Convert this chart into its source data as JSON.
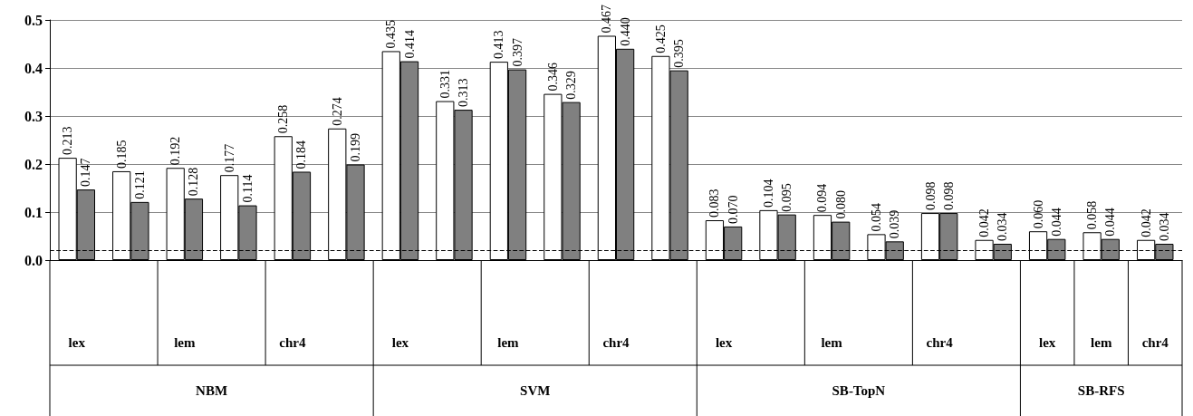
{
  "chart_data": {
    "type": "bar",
    "categories": [
      "lex",
      null,
      "lem",
      null,
      "chr4",
      null,
      "lex",
      null,
      "lem",
      null,
      "chr4",
      null,
      "lex",
      null,
      "lem",
      null,
      "chr4",
      null,
      "lex",
      "lem",
      "chr4"
    ],
    "series": [
      {
        "color": "#ffffff",
        "values": [
          0.213,
          0.185,
          0.192,
          0.177,
          0.258,
          0.274,
          0.435,
          0.331,
          0.413,
          0.346,
          0.467,
          0.425,
          0.083,
          0.104,
          0.094,
          0.054,
          0.098,
          0.042,
          0.06,
          0.058,
          0.042
        ],
        "value_labels": [
          "0.213",
          "0.185",
          "0.192",
          "0.177",
          "0.258",
          "0.274",
          "0.435",
          "0.331",
          "0.413",
          "0.346",
          "0.467",
          "0.425",
          "0.083",
          "0.104",
          "0.094",
          "0.054",
          "0.098",
          "0.042",
          "0.060",
          "0.058",
          "0.042"
        ]
      },
      {
        "color": "#808080",
        "values": [
          0.147,
          0.121,
          0.128,
          0.114,
          0.184,
          0.199,
          0.414,
          0.313,
          0.397,
          0.329,
          0.44,
          0.395,
          0.07,
          0.095,
          0.08,
          0.039,
          0.098,
          0.034,
          0.044,
          0.044,
          0.034
        ],
        "value_labels": [
          "0.147",
          "0.121",
          "0.128",
          "0.114",
          "0.184",
          "0.199",
          "0.414",
          "0.313",
          "0.397",
          "0.329",
          "0.440",
          "0.395",
          "0.070",
          "0.095",
          "0.080",
          "0.039",
          "0.098",
          "0.034",
          "0.044",
          "0.044",
          "0.034"
        ]
      }
    ],
    "ylim": [
      0,
      0.5
    ],
    "yticks": [
      {
        "value": 0,
        "label": "0.0"
      },
      0.1,
      0.2,
      0.3,
      0.4,
      0.5
    ],
    "grid": "y",
    "ref_lines": [
      {
        "axis": "y",
        "value": 0.02,
        "color": "#000000",
        "line_style": "dashed"
      }
    ],
    "annotations": [
      "NBM",
      "SVM",
      "SB-TopN",
      "SB-RFS"
    ]
  }
}
